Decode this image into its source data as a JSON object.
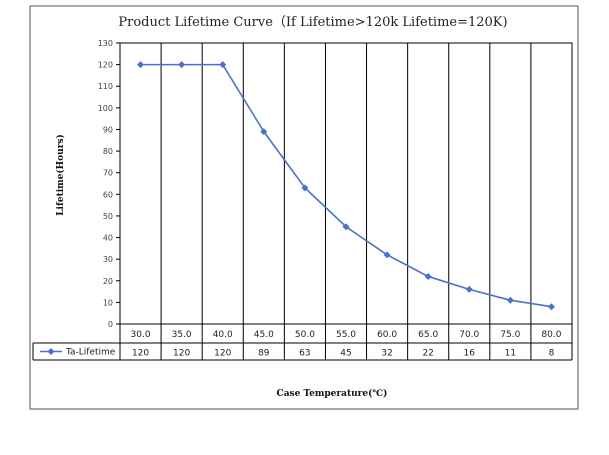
{
  "chart_data": {
    "type": "line",
    "title": "Product Lifetime Curve（If Lifetime>120k Lifetime=120K)",
    "xlabel": "Case Temperature(℃)",
    "ylabel": "Lifetime(Hours)",
    "categories": [
      "30.0",
      "35.0",
      "40.0",
      "45.0",
      "50.0",
      "55.0",
      "60.0",
      "65.0",
      "70.0",
      "75.0",
      "80.0"
    ],
    "series": [
      {
        "name": "Ta-Lifetime",
        "values": [
          120,
          120,
          120,
          89,
          63,
          45,
          32,
          22,
          16,
          11,
          8
        ],
        "table_labels": [
          "120",
          "120",
          "120",
          "89",
          "63",
          "45",
          "32",
          "22",
          "16",
          "11",
          "8"
        ],
        "color": "#4a72c8"
      }
    ],
    "ylim": [
      0,
      130
    ],
    "yticks": [
      "0",
      "10",
      "20",
      "30",
      "40",
      "50",
      "60",
      "70",
      "80",
      "90",
      "100",
      "110",
      "120",
      "130"
    ],
    "grid": "vertical",
    "legend": "data-table"
  }
}
